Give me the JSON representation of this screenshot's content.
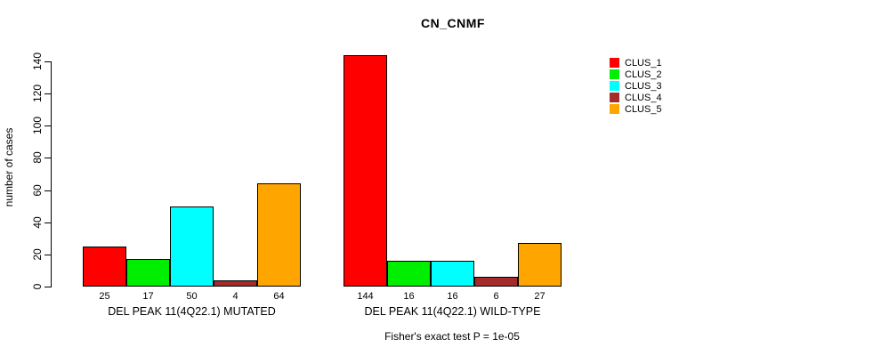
{
  "chart_data": {
    "type": "bar",
    "title": "CN_CNMF",
    "ylabel": "number of cases",
    "xlabel": "",
    "ylim": [
      0,
      140
    ],
    "yticks": [
      0,
      20,
      40,
      60,
      80,
      100,
      120,
      140
    ],
    "grid": false,
    "legend_position": "right-outside",
    "series": [
      {
        "name": "CLUS_1",
        "color": "#ff0000",
        "values": [
          25,
          144
        ]
      },
      {
        "name": "CLUS_2",
        "color": "#00ee00",
        "values": [
          17,
          16
        ]
      },
      {
        "name": "CLUS_3",
        "color": "#00ffff",
        "values": [
          50,
          16
        ]
      },
      {
        "name": "CLUS_4",
        "color": "#a52a2a",
        "values": [
          4,
          6
        ]
      },
      {
        "name": "CLUS_5",
        "color": "#ffa500",
        "values": [
          64,
          27
        ]
      }
    ],
    "groups": [
      {
        "label": "DEL PEAK 11(4Q22.1) MUTATED",
        "values": [
          25,
          17,
          50,
          4,
          64
        ]
      },
      {
        "label": "DEL PEAK 11(4Q22.1) WILD-TYPE",
        "values": [
          144,
          16,
          16,
          6,
          27
        ]
      }
    ],
    "annotation": "Fisher's exact test P = 1e-05"
  }
}
